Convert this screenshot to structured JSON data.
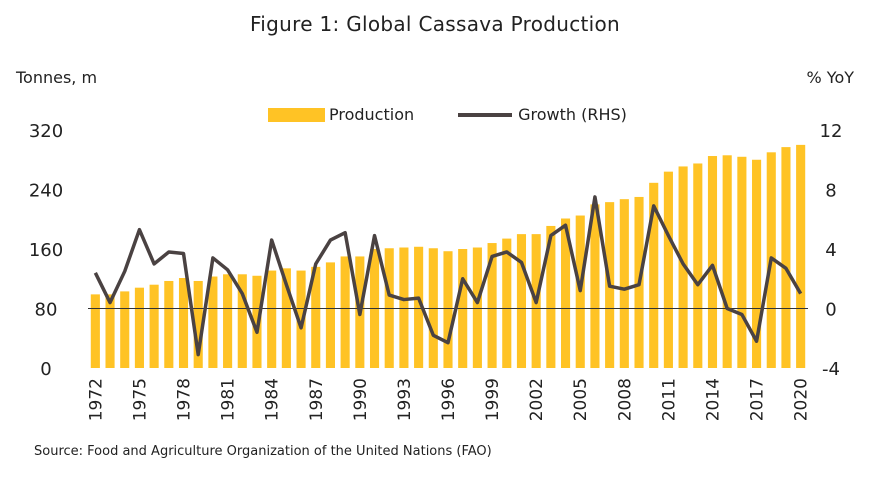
{
  "title": "Figure 1: Global Cassava Production",
  "left_axis_unit": "Tonnes, m",
  "right_axis_unit": "% YoY",
  "legend": {
    "bar": "Production",
    "line": "Growth (RHS)"
  },
  "source": "Source: Food and Agriculture Organization of the United Nations (FAO)",
  "colors": {
    "bar": "#FFC325",
    "line": "#4A4242",
    "baseline": "#333333"
  },
  "chart_data": {
    "type": "bar",
    "title": "Figure 1: Global Cassava Production",
    "x_tick_labels": [
      "1972",
      "1975",
      "1978",
      "1981",
      "1984",
      "1987",
      "1990",
      "1993",
      "1996",
      "1999",
      "2002",
      "2005",
      "2008",
      "2011",
      "2014",
      "2017",
      "2020"
    ],
    "categories": [
      1972,
      1973,
      1974,
      1975,
      1976,
      1977,
      1978,
      1979,
      1980,
      1981,
      1982,
      1983,
      1984,
      1985,
      1986,
      1987,
      1988,
      1989,
      1990,
      1991,
      1992,
      1993,
      1994,
      1995,
      1996,
      1997,
      1998,
      1999,
      2000,
      2001,
      2002,
      2003,
      2004,
      2005,
      2006,
      2007,
      2008,
      2009,
      2010,
      2011,
      2012,
      2013,
      2014,
      2015,
      2016,
      2017,
      2018,
      2019,
      2020
    ],
    "left_axis": {
      "label": "Tonnes, m",
      "ylim": [
        0,
        320
      ],
      "ticks": [
        0,
        80,
        160,
        240,
        320
      ]
    },
    "right_axis": {
      "label": "% YoY",
      "ylim": [
        -4,
        12
      ],
      "ticks": [
        -4,
        0,
        4,
        8,
        12
      ]
    },
    "series": [
      {
        "name": "Production",
        "type": "bar",
        "axis": "left",
        "values": [
          99,
          99,
          103,
          108,
          112,
          117,
          121,
          117,
          123,
          126,
          126,
          124,
          131,
          134,
          131,
          136,
          142,
          150,
          150,
          160,
          161,
          162,
          163,
          161,
          157,
          160,
          162,
          168,
          174,
          180,
          180,
          191,
          201,
          205,
          220,
          223,
          227,
          230,
          249,
          264,
          271,
          275,
          285,
          286,
          284,
          280,
          290,
          297,
          300
        ]
      },
      {
        "name": "Growth (RHS)",
        "type": "line",
        "axis": "right",
        "values": [
          2.4,
          0.4,
          2.5,
          5.3,
          3.0,
          3.8,
          3.7,
          -3.1,
          3.4,
          2.6,
          1.0,
          -1.6,
          4.6,
          1.6,
          -1.3,
          3.0,
          4.6,
          5.1,
          -0.4,
          4.9,
          0.9,
          0.6,
          0.7,
          -1.8,
          -2.3,
          2.0,
          0.4,
          3.5,
          3.8,
          3.1,
          0.4,
          4.9,
          5.6,
          1.2,
          7.5,
          1.5,
          1.3,
          1.6,
          6.9,
          4.9,
          3.0,
          1.6,
          2.9,
          0.0,
          -0.4,
          -2.2,
          3.4,
          2.7,
          1.0
        ]
      }
    ],
    "grid": false,
    "legend_position": "top-center"
  }
}
